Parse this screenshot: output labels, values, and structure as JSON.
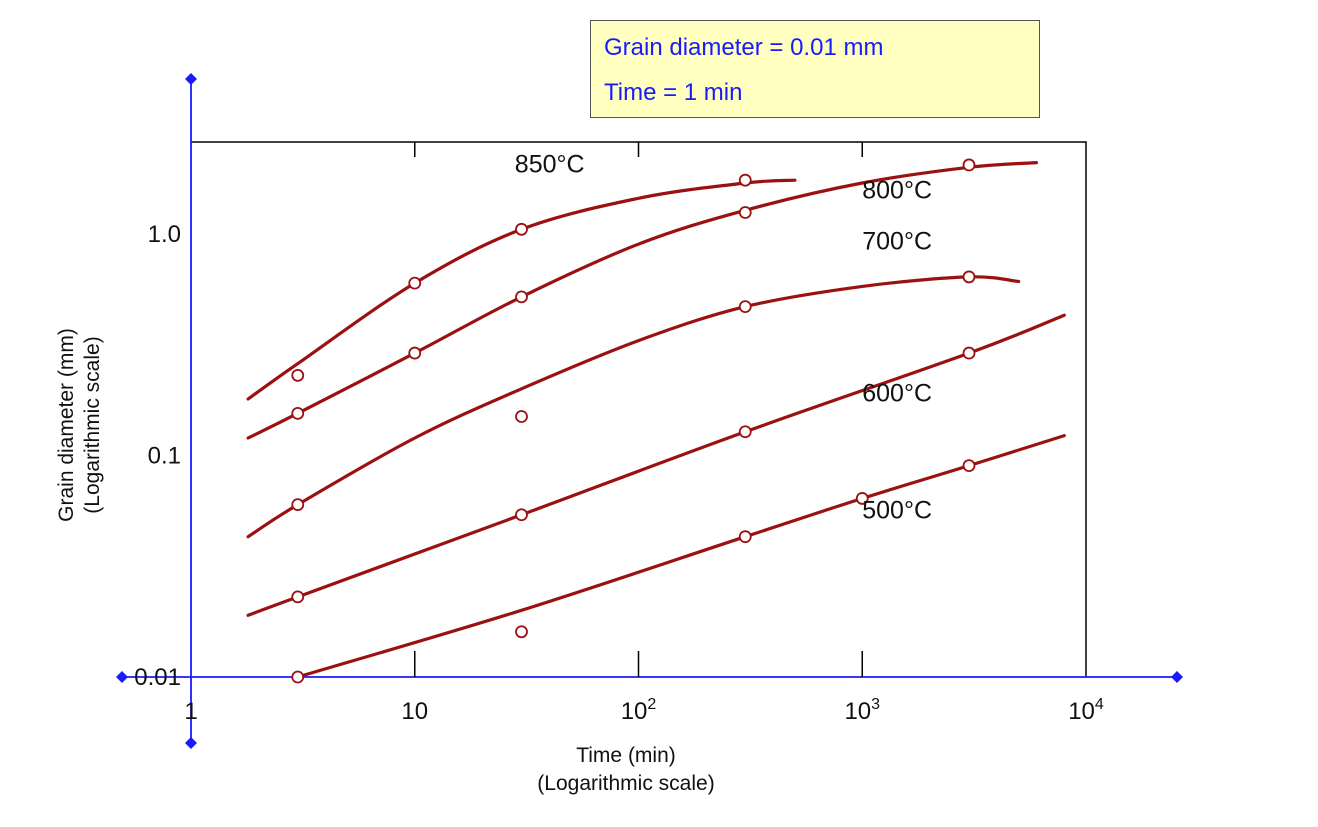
{
  "info_box": {
    "line1": "Grain diameter = 0.01 mm",
    "line2": "Time = 1 min"
  },
  "colors": {
    "curve": "#9b1111",
    "axis": "#1a1aff",
    "frame": "#000000",
    "info_text": "#1a1aff",
    "info_bg": "#ffffc0"
  },
  "chart_data": {
    "type": "line",
    "xscale": "log",
    "yscale": "log",
    "xlim": [
      1,
      10000
    ],
    "ylim": [
      0.01,
      2.5
    ],
    "grid": false,
    "xlabel": [
      "Time (min)",
      "(Logarithmic scale)"
    ],
    "ylabel": [
      "Grain diameter (mm)",
      "(Logarithmic scale)"
    ],
    "x_ticks": [
      {
        "value": 1,
        "base": "1",
        "exp": ""
      },
      {
        "value": 10,
        "base": "10",
        "exp": ""
      },
      {
        "value": 100,
        "base": "10",
        "exp": "2"
      },
      {
        "value": 1000,
        "base": "10",
        "exp": "3"
      },
      {
        "value": 10000,
        "base": "10",
        "exp": "4"
      }
    ],
    "y_ticks": [
      {
        "value": 0.01,
        "label": "0.01"
      },
      {
        "value": 0.1,
        "label": "0.1"
      },
      {
        "value": 1,
        "label": "1.0"
      }
    ],
    "series": [
      {
        "name": "850°C",
        "curve": [
          [
            1.8,
            0.18
          ],
          [
            3,
            0.26
          ],
          [
            10,
            0.6
          ],
          [
            30,
            1.05
          ],
          [
            100,
            1.45
          ],
          [
            300,
            1.7
          ],
          [
            500,
            1.75
          ]
        ],
        "points": [
          [
            3,
            0.23
          ],
          [
            10,
            0.6
          ],
          [
            30,
            1.05
          ],
          [
            300,
            1.75
          ]
        ]
      },
      {
        "name": "800°C",
        "curve": [
          [
            1.8,
            0.12
          ],
          [
            3,
            0.155
          ],
          [
            10,
            0.29
          ],
          [
            30,
            0.52
          ],
          [
            100,
            0.9
          ],
          [
            300,
            1.28
          ],
          [
            1000,
            1.7
          ],
          [
            3000,
            2.0
          ],
          [
            6000,
            2.1
          ]
        ],
        "points": [
          [
            3,
            0.155
          ],
          [
            10,
            0.29
          ],
          [
            30,
            0.52
          ],
          [
            300,
            1.25
          ],
          [
            3000,
            2.05
          ]
        ]
      },
      {
        "name": "700°C",
        "curve": [
          [
            1.8,
            0.043
          ],
          [
            3,
            0.06
          ],
          [
            10,
            0.12
          ],
          [
            30,
            0.2
          ],
          [
            100,
            0.33
          ],
          [
            300,
            0.47
          ],
          [
            1000,
            0.58
          ],
          [
            3000,
            0.64
          ],
          [
            5000,
            0.61
          ]
        ],
        "points": [
          [
            3,
            0.06
          ],
          [
            30,
            0.15
          ],
          [
            300,
            0.47
          ],
          [
            3000,
            0.64
          ]
        ]
      },
      {
        "name": "600°C",
        "curve": [
          [
            1.8,
            0.019
          ],
          [
            3,
            0.023
          ],
          [
            30,
            0.054
          ],
          [
            300,
            0.128
          ],
          [
            3000,
            0.29
          ],
          [
            8000,
            0.43
          ]
        ],
        "points": [
          [
            3,
            0.023
          ],
          [
            30,
            0.054
          ],
          [
            300,
            0.128
          ],
          [
            3000,
            0.29
          ]
        ]
      },
      {
        "name": "500°C",
        "curve": [
          [
            3,
            0.01
          ],
          [
            30,
            0.02
          ],
          [
            300,
            0.043
          ],
          [
            1000,
            0.064
          ],
          [
            3000,
            0.09
          ],
          [
            8000,
            0.123
          ]
        ],
        "points": [
          [
            3,
            0.01
          ],
          [
            30,
            0.016
          ],
          [
            300,
            0.043
          ],
          [
            1000,
            0.064
          ],
          [
            3000,
            0.09
          ]
        ]
      }
    ],
    "annotations": [
      {
        "text": "850°C",
        "x": 28,
        "y": 1.9
      },
      {
        "text": "800°C",
        "x": 1000,
        "y": 1.45
      },
      {
        "text": "700°C",
        "x": 1000,
        "y": 0.85
      },
      {
        "text": "600°C",
        "x": 1000,
        "y": 0.175
      },
      {
        "text": "500°C",
        "x": 1000,
        "y": 0.052
      }
    ]
  }
}
